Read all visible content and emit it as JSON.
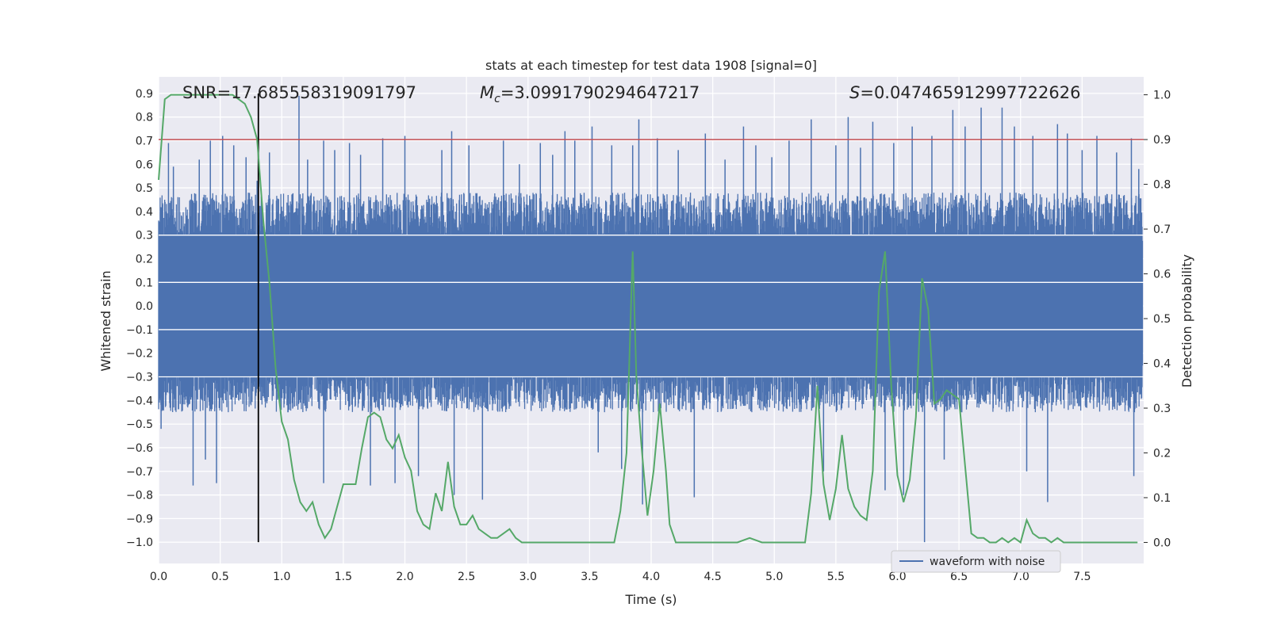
{
  "chart_data": {
    "type": "line",
    "title": "stats at each timestep for test data 1908 [signal=0]",
    "xlabel": "Time (s)",
    "ylabel": "Whitened strain",
    "y2label": "Detection probability",
    "xlim": [
      0.0,
      8.0
    ],
    "ylim": [
      -1.09,
      0.97
    ],
    "y2lim": [
      -0.047,
      1.04
    ],
    "xticks": [
      "0.0",
      "0.5",
      "1.0",
      "1.5",
      "2.0",
      "2.5",
      "3.0",
      "3.5",
      "4.0",
      "4.5",
      "5.0",
      "5.5",
      "6.0",
      "6.5",
      "7.0",
      "7.5"
    ],
    "xtick_values": [
      0.0,
      0.5,
      1.0,
      1.5,
      2.0,
      2.5,
      3.0,
      3.5,
      4.0,
      4.5,
      5.0,
      5.5,
      6.0,
      6.5,
      7.0,
      7.5
    ],
    "yticks": [
      "0.9",
      "0.8",
      "0.7",
      "0.6",
      "0.5",
      "0.4",
      "0.3",
      "0.2",
      "0.1",
      "0.0",
      "−0.1",
      "−0.2",
      "−0.3",
      "−0.4",
      "−0.5",
      "−0.6",
      "−0.7",
      "−0.8",
      "−0.9",
      "−1.0"
    ],
    "ytick_values": [
      0.9,
      0.8,
      0.7,
      0.6,
      0.5,
      0.4,
      0.3,
      0.2,
      0.1,
      0.0,
      -0.1,
      -0.2,
      -0.3,
      -0.4,
      -0.5,
      -0.6,
      -0.7,
      -0.8,
      -0.9,
      -1.0
    ],
    "y2ticks": [
      "1.0",
      "0.9",
      "0.8",
      "0.7",
      "0.6",
      "0.5",
      "0.4",
      "0.3",
      "0.2",
      "0.1",
      "0.0"
    ],
    "y2tick_values": [
      1.0,
      0.9,
      0.8,
      0.7,
      0.6,
      0.5,
      0.4,
      0.3,
      0.2,
      0.1,
      0.0
    ],
    "grid": true,
    "legend": {
      "entries": [
        "waveform with noise"
      ],
      "placement": "lower-right"
    },
    "annotations": {
      "snr": "SNR=17.685558319091797",
      "mc_symbol": "M",
      "mc_sub": "c",
      "mc_value": "=3.0991790294647217",
      "s_symbol": "S",
      "s_value": "=0.047465912997722626"
    },
    "threshold": {
      "value": 0.9,
      "axis": "right",
      "color": "#c44e52"
    },
    "vline": {
      "x": 0.81,
      "ymin": -1.0,
      "ymax": 0.9,
      "color": "#000000"
    },
    "waveform": {
      "name": "waveform with noise",
      "color": "#4c72b0",
      "x_range": [
        0.0,
        7.99
      ],
      "typical_range": [
        -0.45,
        0.48
      ],
      "spikes": [
        [
          0.02,
          -0.52
        ],
        [
          0.08,
          0.69
        ],
        [
          0.12,
          0.59
        ],
        [
          0.28,
          -0.76
        ],
        [
          0.33,
          0.62
        ],
        [
          0.38,
          -0.65
        ],
        [
          0.42,
          0.7
        ],
        [
          0.47,
          -0.75
        ],
        [
          0.52,
          0.72
        ],
        [
          0.61,
          0.68
        ],
        [
          0.71,
          0.63
        ],
        [
          0.8,
          0.53
        ],
        [
          0.9,
          0.65
        ],
        [
          1.05,
          -0.45
        ],
        [
          1.14,
          0.89
        ],
        [
          1.21,
          0.62
        ],
        [
          1.34,
          0.7
        ],
        [
          1.34,
          -0.75
        ],
        [
          1.43,
          0.66
        ],
        [
          1.55,
          0.69
        ],
        [
          1.64,
          0.64
        ],
        [
          1.72,
          -0.76
        ],
        [
          1.82,
          0.71
        ],
        [
          1.92,
          -0.75
        ],
        [
          2.0,
          0.72
        ],
        [
          2.11,
          -0.72
        ],
        [
          2.3,
          0.66
        ],
        [
          2.38,
          0.74
        ],
        [
          2.4,
          -0.8
        ],
        [
          2.52,
          0.68
        ],
        [
          2.63,
          -0.82
        ],
        [
          2.8,
          0.7
        ],
        [
          2.93,
          0.6
        ],
        [
          3.1,
          0.69
        ],
        [
          3.2,
          0.64
        ],
        [
          3.3,
          0.74
        ],
        [
          3.38,
          0.7
        ],
        [
          3.52,
          0.76
        ],
        [
          3.57,
          -0.62
        ],
        [
          3.68,
          0.68
        ],
        [
          3.76,
          -0.69
        ],
        [
          3.85,
          0.68
        ],
        [
          3.9,
          0.79
        ],
        [
          3.93,
          -0.84
        ],
        [
          4.05,
          0.71
        ],
        [
          4.22,
          0.66
        ],
        [
          4.35,
          -0.81
        ],
        [
          4.44,
          0.73
        ],
        [
          4.6,
          0.62
        ],
        [
          4.75,
          0.76
        ],
        [
          4.85,
          0.68
        ],
        [
          4.98,
          0.63
        ],
        [
          5.12,
          0.7
        ],
        [
          5.3,
          0.79
        ],
        [
          5.4,
          -0.7
        ],
        [
          5.5,
          0.68
        ],
        [
          5.6,
          0.8
        ],
        [
          5.7,
          0.67
        ],
        [
          5.8,
          0.78
        ],
        [
          5.9,
          -0.78
        ],
        [
          5.97,
          0.69
        ],
        [
          6.05,
          -0.8
        ],
        [
          6.12,
          0.76
        ],
        [
          6.22,
          -1.0
        ],
        [
          6.28,
          0.72
        ],
        [
          6.38,
          -0.65
        ],
        [
          6.45,
          0.83
        ],
        [
          6.55,
          0.76
        ],
        [
          6.68,
          0.84
        ],
        [
          6.85,
          0.84
        ],
        [
          6.95,
          0.76
        ],
        [
          7.05,
          -0.7
        ],
        [
          7.1,
          0.72
        ],
        [
          7.22,
          -0.83
        ],
        [
          7.3,
          0.77
        ],
        [
          7.38,
          0.73
        ],
        [
          7.5,
          0.66
        ],
        [
          7.62,
          0.72
        ],
        [
          7.78,
          0.65
        ],
        [
          7.9,
          0.71
        ],
        [
          7.92,
          -0.72
        ],
        [
          7.96,
          0.58
        ]
      ]
    },
    "probability": {
      "color": "#55a868",
      "x": [
        0.0,
        0.05,
        0.1,
        0.2,
        0.3,
        0.4,
        0.5,
        0.6,
        0.65,
        0.7,
        0.75,
        0.8,
        0.85,
        0.9,
        0.95,
        1.0,
        1.05,
        1.1,
        1.15,
        1.2,
        1.25,
        1.3,
        1.35,
        1.4,
        1.45,
        1.5,
        1.55,
        1.6,
        1.65,
        1.7,
        1.75,
        1.8,
        1.85,
        1.9,
        1.95,
        2.0,
        2.05,
        2.1,
        2.15,
        2.2,
        2.25,
        2.3,
        2.35,
        2.4,
        2.45,
        2.5,
        2.55,
        2.6,
        2.65,
        2.7,
        2.75,
        2.8,
        2.85,
        2.9,
        2.95,
        3.0,
        3.05,
        3.1,
        3.15,
        3.2,
        3.3,
        3.4,
        3.5,
        3.6,
        3.7,
        3.75,
        3.8,
        3.85,
        3.88,
        3.92,
        3.97,
        4.02,
        4.07,
        4.12,
        4.15,
        4.2,
        4.25,
        4.3,
        4.4,
        4.5,
        4.6,
        4.7,
        4.8,
        4.9,
        5.0,
        5.1,
        5.2,
        5.25,
        5.3,
        5.35,
        5.4,
        5.45,
        5.5,
        5.55,
        5.6,
        5.65,
        5.7,
        5.75,
        5.8,
        5.85,
        5.9,
        5.95,
        6.0,
        6.05,
        6.1,
        6.15,
        6.2,
        6.25,
        6.3,
        6.35,
        6.4,
        6.45,
        6.5,
        6.55,
        6.6,
        6.65,
        6.7,
        6.75,
        6.8,
        6.85,
        6.9,
        6.95,
        7.0,
        7.05,
        7.1,
        7.15,
        7.2,
        7.25,
        7.3,
        7.35,
        7.4,
        7.5,
        7.6,
        7.7,
        7.8,
        7.9,
        7.95
      ],
      "y": [
        0.81,
        0.99,
        1.0,
        1.0,
        1.0,
        1.0,
        1.0,
        1.0,
        0.99,
        0.98,
        0.95,
        0.9,
        0.72,
        0.58,
        0.39,
        0.27,
        0.23,
        0.14,
        0.09,
        0.07,
        0.09,
        0.04,
        0.01,
        0.03,
        0.08,
        0.13,
        0.13,
        0.13,
        0.21,
        0.28,
        0.29,
        0.28,
        0.23,
        0.21,
        0.24,
        0.19,
        0.16,
        0.07,
        0.04,
        0.03,
        0.11,
        0.07,
        0.18,
        0.08,
        0.04,
        0.04,
        0.06,
        0.03,
        0.02,
        0.01,
        0.01,
        0.02,
        0.03,
        0.01,
        0.0,
        0.0,
        0.0,
        0.0,
        0.0,
        0.0,
        0.0,
        0.0,
        0.0,
        0.0,
        0.0,
        0.07,
        0.2,
        0.65,
        0.37,
        0.22,
        0.06,
        0.16,
        0.31,
        0.16,
        0.04,
        0.0,
        0.0,
        0.0,
        0.0,
        0.0,
        0.0,
        0.0,
        0.01,
        0.0,
        0.0,
        0.0,
        0.0,
        0.0,
        0.11,
        0.35,
        0.13,
        0.05,
        0.12,
        0.24,
        0.12,
        0.08,
        0.06,
        0.05,
        0.16,
        0.56,
        0.65,
        0.35,
        0.15,
        0.09,
        0.14,
        0.28,
        0.59,
        0.52,
        0.31,
        0.32,
        0.34,
        0.33,
        0.32,
        0.17,
        0.02,
        0.01,
        0.01,
        0.0,
        0.0,
        0.01,
        0.0,
        0.01,
        0.0,
        0.05,
        0.02,
        0.01,
        0.01,
        0.0,
        0.01,
        0.0,
        0.0,
        0.0,
        0.0,
        0.0,
        0.0,
        0.0,
        0.0
      ]
    }
  }
}
